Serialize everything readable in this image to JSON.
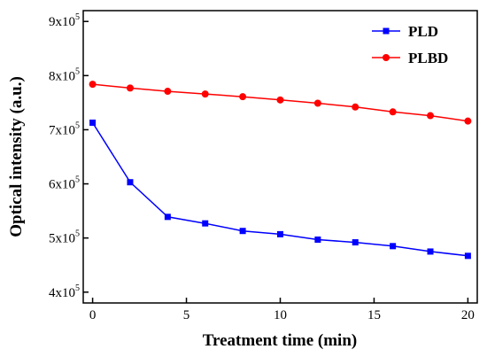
{
  "chart_data": {
    "type": "line",
    "title": "",
    "xlabel": "Treatment time (min)",
    "ylabel": "Optical intensity (a.u.)",
    "xlim": [
      -0.5,
      20.5
    ],
    "ylim": [
      380000,
      920000
    ],
    "x_ticks": [
      0,
      5,
      10,
      15,
      20
    ],
    "x_tick_labels": [
      "0",
      "5",
      "10",
      "15",
      "20"
    ],
    "y_ticks": [
      400000,
      500000,
      600000,
      700000,
      800000,
      900000
    ],
    "y_tick_labels": [
      {
        "base": "4x10",
        "exp": "5"
      },
      {
        "base": "5x10",
        "exp": "5"
      },
      {
        "base": "6x10",
        "exp": "5"
      },
      {
        "base": "7x10",
        "exp": "5"
      },
      {
        "base": "8x10",
        "exp": "5"
      },
      {
        "base": "9x10",
        "exp": "5"
      }
    ],
    "grid": false,
    "legend_position": "top-right",
    "series": [
      {
        "name": "PLD",
        "color": "#0000ff",
        "marker": "square",
        "x": [
          0,
          2,
          4,
          6,
          8,
          10,
          12,
          14,
          16,
          18,
          20
        ],
        "y": [
          713000,
          603000,
          539000,
          527000,
          513000,
          507000,
          497000,
          492000,
          485000,
          475000,
          467000
        ]
      },
      {
        "name": "PLBD",
        "color": "#ff0000",
        "marker": "circle",
        "x": [
          0,
          2,
          4,
          6,
          8,
          10,
          12,
          14,
          16,
          18,
          20
        ],
        "y": [
          784000,
          777000,
          771000,
          766000,
          761000,
          755000,
          749000,
          742000,
          733000,
          726000,
          716000
        ]
      }
    ]
  }
}
